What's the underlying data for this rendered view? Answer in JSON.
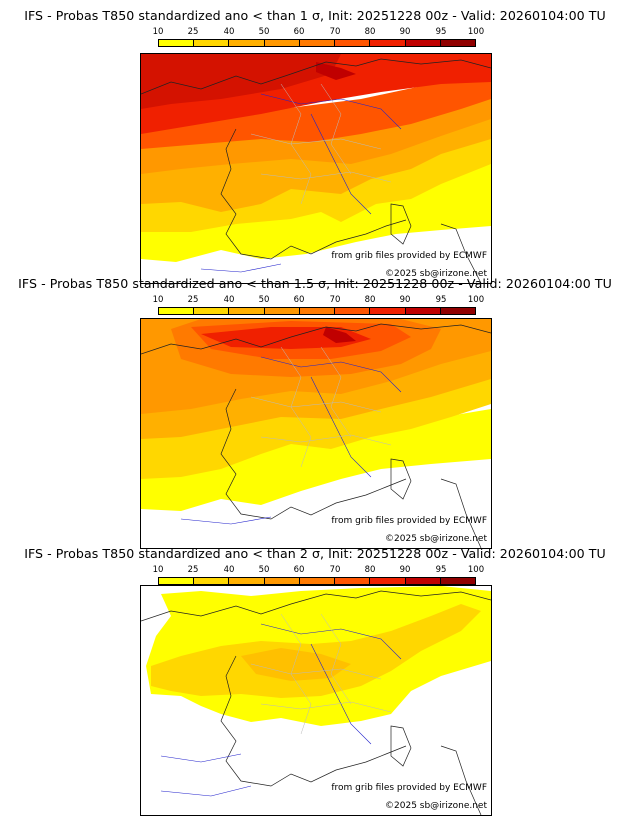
{
  "colorbar": {
    "ticks": [
      "10",
      "25",
      "40",
      "50",
      "60",
      "70",
      "80",
      "90",
      "95",
      "100"
    ],
    "colors": [
      "#ffff00",
      "#ffd700",
      "#ffb000",
      "#ff9800",
      "#ff7a00",
      "#ff5500",
      "#f02000",
      "#c00000",
      "#900000",
      "#600000"
    ]
  },
  "panels": [
    {
      "title": "IFS - Probas T850  standardized ano < than 1 σ, Init: 20251228 00z - Valid: 20260104:00 TU",
      "credit_source": "from grib files provided by ECMWF",
      "credit_copyright": "©2025 sb@irizone.net",
      "dominant_probability_pct": 80
    },
    {
      "title": "IFS - Probas T850  standardized ano < than 1.5 σ, Init: 20251228 00z - Valid: 20260104:00 TU",
      "credit_source": "from grib files provided by ECMWF",
      "credit_copyright": "©2025 sb@irizone.net",
      "dominant_probability_pct": 70
    },
    {
      "title": "IFS - Probas T850  standardized ano < than 2 σ, Init: 20251228 00z - Valid: 20260104:00 TU",
      "credit_source": "from grib files provided by ECMWF",
      "credit_copyright": "©2025 sb@irizone.net",
      "dominant_probability_pct": 25
    }
  ]
}
